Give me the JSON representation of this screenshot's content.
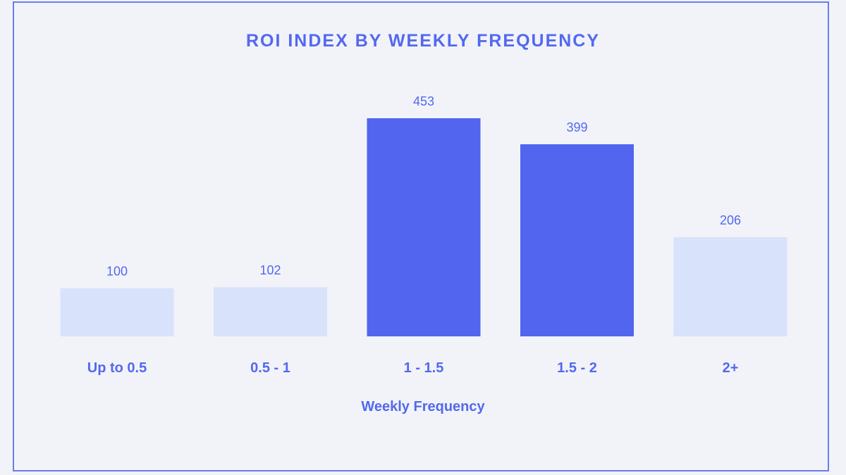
{
  "chart_data": {
    "type": "bar",
    "title": "ROI INDEX BY WEEKLY FREQUENCY",
    "xlabel": "Weekly Frequency",
    "ylabel": "",
    "categories": [
      "Up to 0.5",
      "0.5 - 1",
      "1 - 1.5",
      "1.5 - 2",
      "2+"
    ],
    "values": [
      100,
      102,
      453,
      399,
      206
    ],
    "highlighted": [
      false,
      false,
      true,
      true,
      false
    ],
    "ylim": [
      0,
      453
    ],
    "grid": false,
    "legend": "none"
  },
  "colors": {
    "accent": "#5468ee",
    "bar_highlight": "#5165ee",
    "bar_light": "#d8e3fb",
    "background": "#f1f3f9",
    "border": "#6a7cf0"
  }
}
